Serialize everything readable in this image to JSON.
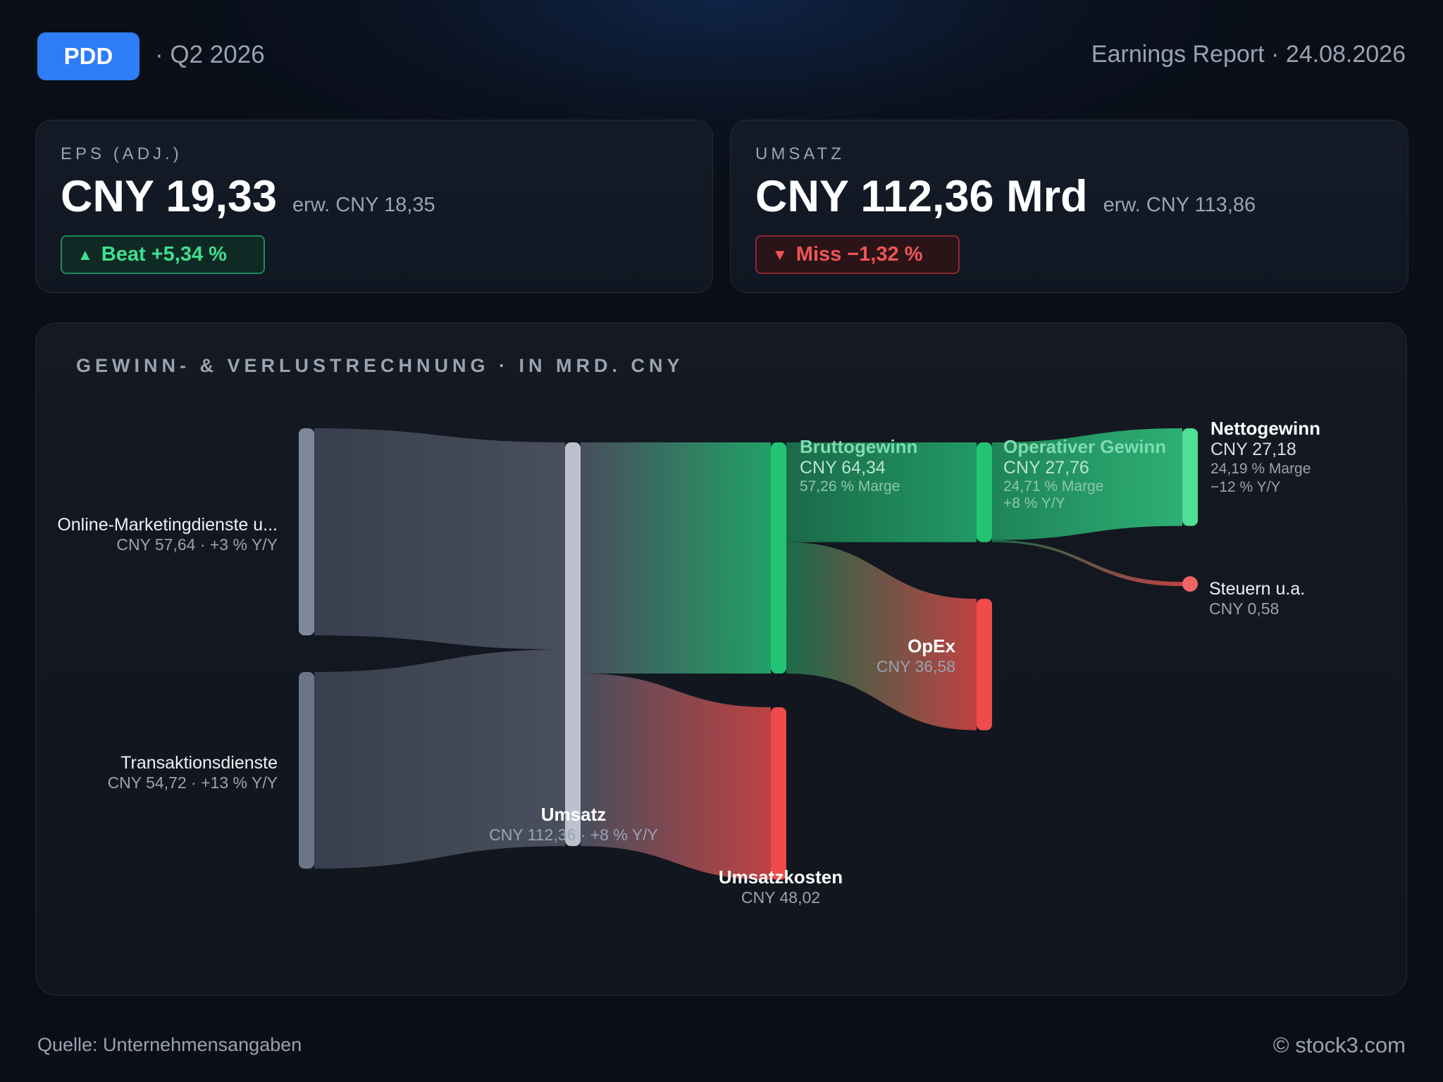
{
  "header": {
    "ticker": "PDD",
    "quarter": "· Q2 2026",
    "report": "Earnings Report · 24.08.2026"
  },
  "eps": {
    "label": "EPS (ADJ.)",
    "value": "CNY 19,33",
    "expected": "erw. CNY 18,35",
    "badge": "Beat +5,34 %"
  },
  "revenue": {
    "label": "UMSATZ",
    "value": "CNY 112,36 Mrd",
    "expected": "erw. CNY 113,86",
    "badge": "Miss −1,32 %"
  },
  "colors": {
    "accent": "#2e7cf6",
    "positive": "#22c473",
    "negative": "#ef4b4b",
    "neutral": "#7e8799"
  },
  "chart_data": {
    "type": "sankey",
    "title": "GEWINN- & VERLUSTRECHNUNG · IN MRD. CNY",
    "unit": "Mrd. CNY",
    "nodes": [
      {
        "id": "online",
        "name": "Online-Marketingdienste u...",
        "value": 57.64,
        "value_label": "CNY 57,64 · +3 % Y/Y"
      },
      {
        "id": "trans",
        "name": "Transaktionsdienste",
        "value": 54.72,
        "value_label": "CNY 54,72 · +13 % Y/Y"
      },
      {
        "id": "umsatz",
        "name": "Umsatz",
        "value": 112.36,
        "value_label": "CNY 112,36 · +8 % Y/Y"
      },
      {
        "id": "brutto",
        "name": "Bruttogewinn",
        "value": 64.34,
        "value_label": "CNY 64,34",
        "note": "57,26 % Marge"
      },
      {
        "id": "kosten",
        "name": "Umsatzkosten",
        "value": 48.02,
        "value_label": "CNY 48,02"
      },
      {
        "id": "op",
        "name": "Operativer Gewinn",
        "value": 27.76,
        "value_label": "CNY 27,76",
        "note": "24,71 % Marge",
        "note2": "+8 % Y/Y"
      },
      {
        "id": "opex",
        "name": "OpEx",
        "value": 36.58,
        "value_label": "CNY 36,58"
      },
      {
        "id": "netto",
        "name": "Nettogewinn",
        "value": 27.18,
        "value_label": "CNY 27,18",
        "note": "24,19 % Marge",
        "note2": "−12 % Y/Y"
      },
      {
        "id": "steuern",
        "name": "Steuern u.a.",
        "value": 0.58,
        "value_label": "CNY 0,58"
      }
    ],
    "links": [
      {
        "source": "online",
        "target": "umsatz",
        "value": 57.64
      },
      {
        "source": "trans",
        "target": "umsatz",
        "value": 54.72
      },
      {
        "source": "umsatz",
        "target": "brutto",
        "value": 64.34
      },
      {
        "source": "umsatz",
        "target": "kosten",
        "value": 48.02
      },
      {
        "source": "brutto",
        "target": "op",
        "value": 27.76
      },
      {
        "source": "brutto",
        "target": "opex",
        "value": 36.58
      },
      {
        "source": "op",
        "target": "netto",
        "value": 27.18
      },
      {
        "source": "op",
        "target": "steuern",
        "value": 0.58
      }
    ]
  },
  "footer": {
    "source": "Quelle: Unternehmensangaben",
    "copyright": "© stock3.com"
  }
}
